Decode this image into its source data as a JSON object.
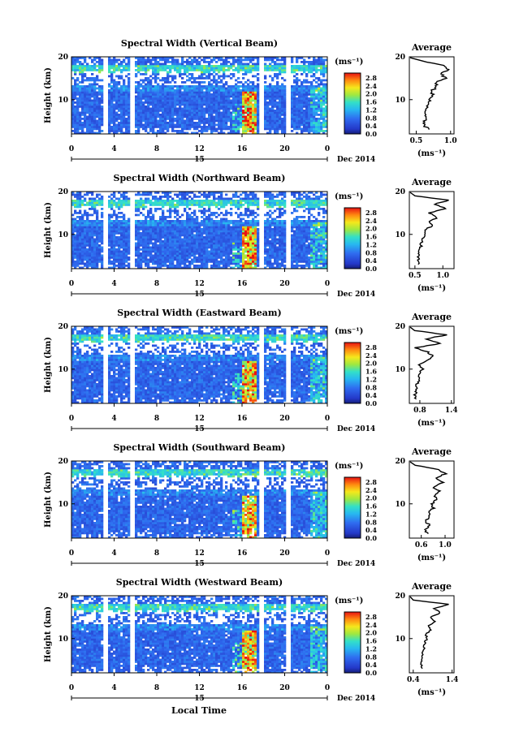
{
  "chart_data": [
    {
      "type": "heatmap",
      "title": "Spectral Width (Vertical Beam)",
      "ylabel": "Height (km)",
      "x_ticks": [
        "0",
        "4",
        "8",
        "12",
        "16",
        "20",
        "0"
      ],
      "y_ticks": [
        "20",
        "10"
      ],
      "xlim": [
        0,
        24
      ],
      "ylim": [
        2,
        20
      ],
      "date_day": "15",
      "date_label": "Dec 2014",
      "colorbar": {
        "unit": "(ms⁻¹)",
        "ticks": [
          "2.8",
          "2.4",
          "2.0",
          "1.6",
          "1.2",
          "0.8",
          "0.4",
          "0.0"
        ],
        "range": [
          0,
          3.0
        ]
      },
      "gaps_hours": [
        3.2,
        5.8,
        17.8,
        20.4
      ],
      "average_profile": {
        "title": "Average",
        "xlabel": "(ms⁻¹)",
        "x_ticks": [
          "0.5",
          "1.0"
        ],
        "xlim": [
          0.4,
          1.05
        ],
        "y_ticks": [
          "20",
          "10"
        ],
        "height": [
          3,
          4,
          5,
          6,
          7,
          8,
          9,
          10,
          11,
          12,
          13,
          14,
          15,
          16,
          17,
          18,
          19
        ],
        "value": [
          0.68,
          0.62,
          0.63,
          0.62,
          0.64,
          0.65,
          0.7,
          0.68,
          0.74,
          0.72,
          0.8,
          0.78,
          0.92,
          0.86,
          0.96,
          0.9,
          0.6
        ]
      }
    },
    {
      "type": "heatmap",
      "title": "Spectral Width (Northward Beam)",
      "ylabel": "Height (km)",
      "x_ticks": [
        "0",
        "4",
        "8",
        "12",
        "16",
        "20",
        "0"
      ],
      "y_ticks": [
        "20",
        "10"
      ],
      "xlim": [
        0,
        24
      ],
      "ylim": [
        2,
        20
      ],
      "date_day": "15",
      "date_label": "Dec 2014",
      "colorbar": {
        "unit": "(ms⁻¹)",
        "ticks": [
          "2.8",
          "2.4",
          "2.0",
          "1.6",
          "1.2",
          "0.8",
          "0.4",
          "0.0"
        ],
        "range": [
          0,
          3.0
        ]
      },
      "gaps_hours": [
        3.2,
        5.8,
        17.8,
        20.4
      ],
      "average_profile": {
        "title": "Average",
        "xlabel": "(ms⁻¹)",
        "x_ticks": [
          "0.5",
          "1.0"
        ],
        "xlim": [
          0.4,
          1.2
        ],
        "y_ticks": [
          "20",
          "10"
        ],
        "height": [
          3,
          4,
          5,
          6,
          7,
          8,
          9,
          10,
          11,
          12,
          13,
          14,
          15,
          16,
          17,
          18,
          19
        ],
        "value": [
          0.58,
          0.55,
          0.57,
          0.56,
          0.6,
          0.62,
          0.64,
          0.66,
          0.68,
          0.8,
          0.78,
          0.9,
          0.75,
          1.05,
          0.85,
          1.1,
          0.5
        ]
      }
    },
    {
      "type": "heatmap",
      "title": "Spectral Width (Eastward Beam)",
      "ylabel": "Height (km)",
      "x_ticks": [
        "0",
        "4",
        "8",
        "12",
        "16",
        "20",
        "0"
      ],
      "y_ticks": [
        "20",
        "10"
      ],
      "xlim": [
        0,
        24
      ],
      "ylim": [
        2,
        20
      ],
      "date_day": "15",
      "date_label": "Dec 2014",
      "colorbar": {
        "unit": "(ms⁻¹)",
        "ticks": [
          "2.8",
          "2.4",
          "2.0",
          "1.6",
          "1.2",
          "0.8",
          "0.4",
          "0.0"
        ],
        "range": [
          0,
          3.0
        ]
      },
      "gaps_hours": [
        3.2,
        5.8,
        17.8,
        20.4
      ],
      "average_profile": {
        "title": "Average",
        "xlabel": "(ms⁻¹)",
        "x_ticks": [
          "0.8",
          "1.4"
        ],
        "xlim": [
          0.6,
          1.45
        ],
        "y_ticks": [
          "20",
          "10"
        ],
        "height": [
          3,
          4,
          5,
          6,
          7,
          8,
          9,
          10,
          11,
          12,
          13,
          14,
          15,
          16,
          17,
          18,
          19
        ],
        "value": [
          0.72,
          0.7,
          0.74,
          0.72,
          0.76,
          0.8,
          0.78,
          0.85,
          0.8,
          0.92,
          1.05,
          0.95,
          0.72,
          1.2,
          0.9,
          1.3,
          0.7
        ]
      }
    },
    {
      "type": "heatmap",
      "title": "Spectral Width (Southward Beam)",
      "ylabel": "Height (km)",
      "x_ticks": [
        "0",
        "4",
        "8",
        "12",
        "16",
        "20",
        "0"
      ],
      "y_ticks": [
        "20",
        "10"
      ],
      "xlim": [
        0,
        24
      ],
      "ylim": [
        2,
        20
      ],
      "date_day": "15",
      "date_label": "Dec 2014",
      "colorbar": {
        "unit": "(ms⁻¹)",
        "ticks": [
          "2.8",
          "2.4",
          "2.0",
          "1.6",
          "1.2",
          "0.8",
          "0.4",
          "0.0"
        ],
        "range": [
          0,
          3.0
        ]
      },
      "gaps_hours": [
        3.2,
        5.8,
        17.8,
        20.4
      ],
      "average_profile": {
        "title": "Average",
        "xlabel": "(ms⁻¹)",
        "x_ticks": [
          "0.6",
          "1.0"
        ],
        "xlim": [
          0.4,
          1.15
        ],
        "y_ticks": [
          "20",
          "10"
        ],
        "height": [
          3,
          4,
          5,
          6,
          7,
          8,
          9,
          10,
          11,
          12,
          13,
          14,
          15,
          16,
          17,
          18,
          19
        ],
        "value": [
          0.7,
          0.68,
          0.74,
          0.66,
          0.75,
          0.72,
          0.8,
          0.78,
          0.85,
          0.82,
          0.9,
          0.8,
          0.95,
          0.85,
          1.0,
          0.9,
          0.5
        ]
      }
    },
    {
      "type": "heatmap",
      "title": "Spectral Width (Westward Beam)",
      "ylabel": "Height (km)",
      "x_ticks": [
        "0",
        "4",
        "8",
        "12",
        "16",
        "20",
        "0"
      ],
      "y_ticks": [
        "20",
        "10"
      ],
      "xlim": [
        0,
        24
      ],
      "ylim": [
        2,
        20
      ],
      "date_day": "15",
      "date_label": "Dec 2014",
      "colorbar": {
        "unit": "(ms⁻¹)",
        "ticks": [
          "2.8",
          "2.4",
          "2.0",
          "1.6",
          "1.2",
          "0.8",
          "0.4",
          "0.0"
        ],
        "range": [
          0,
          3.0
        ]
      },
      "gaps_hours": [
        3.2,
        5.8,
        17.8,
        20.4
      ],
      "average_profile": {
        "title": "Average",
        "xlabel": "(ms⁻¹)",
        "x_ticks": [
          "0.4",
          "1.4"
        ],
        "xlim": [
          0.3,
          1.45
        ],
        "y_ticks": [
          "20",
          "10"
        ],
        "height": [
          3,
          4,
          5,
          6,
          7,
          8,
          9,
          10,
          11,
          12,
          13,
          14,
          15,
          16,
          17,
          18,
          19
        ],
        "value": [
          0.62,
          0.6,
          0.64,
          0.62,
          0.66,
          0.68,
          0.7,
          0.75,
          0.72,
          0.85,
          0.8,
          0.95,
          0.85,
          1.1,
          0.95,
          1.3,
          0.4
        ]
      }
    }
  ],
  "xlabel": "Local Time"
}
